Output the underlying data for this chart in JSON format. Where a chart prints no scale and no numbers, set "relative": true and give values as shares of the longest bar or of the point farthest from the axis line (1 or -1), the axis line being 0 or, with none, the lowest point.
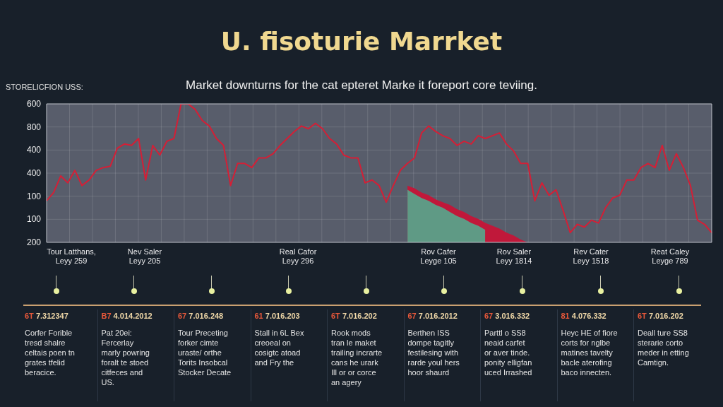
{
  "chart_data": {
    "type": "line",
    "title": "U. fisoturie Marrket",
    "subtitle": "Market downturns for the cat epteret Marke it foreport core teviing.",
    "ylabel": "STORELICFION USS:",
    "relative": true,
    "categories": [
      null,
      null,
      null,
      null,
      null,
      null,
      null,
      null,
      null,
      null,
      null,
      null,
      null,
      null,
      null,
      null,
      null,
      null,
      null,
      null,
      null,
      null,
      null,
      null,
      null,
      null,
      null,
      null,
      null,
      null,
      null,
      null,
      null,
      null,
      null,
      null,
      null,
      null,
      null,
      null,
      null,
      null,
      null,
      null,
      null,
      null,
      null,
      null,
      null,
      null,
      null,
      null,
      null,
      null,
      null,
      null,
      null,
      null,
      null,
      null,
      null,
      null,
      null,
      null,
      null,
      null,
      null,
      null,
      null,
      null,
      null,
      null,
      null,
      null,
      null,
      null,
      null,
      null,
      null,
      null,
      null,
      null,
      null,
      null,
      null,
      null,
      null,
      null,
      null,
      null,
      null,
      null,
      null,
      null,
      null
    ],
    "grid": true,
    "marker": "none",
    "series": [
      {
        "type": "area",
        "color": "#c0183a",
        "values": [
          null,
          null,
          null,
          null,
          null,
          null,
          null,
          null,
          null,
          null,
          null,
          null,
          null,
          null,
          null,
          null,
          null,
          null,
          null,
          null,
          null,
          null,
          null,
          null,
          null,
          null,
          null,
          null,
          null,
          null,
          null,
          null,
          null,
          null,
          null,
          null,
          null,
          null,
          null,
          null,
          null,
          null,
          null,
          null,
          null,
          null,
          null,
          null,
          null,
          null,
          null,
          0.41,
          0.39,
          0.36,
          0.34,
          0.31,
          0.29,
          0.27,
          0.24,
          0.22,
          0.19,
          0.17,
          0.14,
          0.12,
          0.1,
          0.07,
          0.05,
          0.02,
          0,
          null,
          null,
          null,
          null,
          null,
          null,
          null,
          null,
          null,
          null,
          null,
          null,
          null,
          null,
          null,
          null,
          null,
          null,
          null,
          null,
          null,
          null,
          null,
          null,
          null,
          null
        ]
      },
      {
        "type": "area",
        "color": "#5f9a85",
        "values": [
          null,
          null,
          null,
          null,
          null,
          null,
          null,
          null,
          null,
          null,
          null,
          null,
          null,
          null,
          null,
          null,
          null,
          null,
          null,
          null,
          null,
          null,
          null,
          null,
          null,
          null,
          null,
          null,
          null,
          null,
          null,
          null,
          null,
          null,
          null,
          null,
          null,
          null,
          null,
          null,
          null,
          null,
          null,
          null,
          null,
          null,
          null,
          null,
          null,
          null,
          null,
          0.38,
          0.35,
          0.32,
          0.3,
          0.27,
          0.25,
          0.22,
          0.19,
          0.17,
          0.14,
          0.12,
          0.09,
          null,
          null,
          null,
          null,
          null,
          null,
          null,
          null,
          null,
          null,
          null,
          null,
          null,
          null,
          null,
          null,
          null,
          null,
          null,
          null,
          null,
          null,
          null,
          null,
          null,
          null,
          null,
          null,
          null,
          null,
          null,
          null
        ]
      },
      {
        "color": "#d41f36",
        "values": [
          0.3,
          0.36,
          0.48,
          0.43,
          0.52,
          0.41,
          0.45,
          0.52,
          0.54,
          0.55,
          0.68,
          0.71,
          0.7,
          0.75,
          0.45,
          0.7,
          0.63,
          0.73,
          0.75,
          1,
          1,
          0.96,
          0.88,
          0.84,
          0.75,
          0.7,
          0.41,
          0.57,
          0.57,
          0.54,
          0.61,
          0.61,
          0.64,
          0.7,
          0.75,
          0.8,
          0.84,
          0.82,
          0.86,
          0.82,
          0.75,
          0.71,
          0.63,
          0.61,
          0.61,
          0.43,
          0.45,
          0.41,
          0.29,
          0.41,
          0.52,
          0.57,
          0.61,
          0.79,
          0.84,
          0.8,
          0.77,
          0.75,
          0.7,
          0.73,
          0.71,
          0.77,
          0.75,
          0.77,
          0.79,
          0.71,
          0.66,
          0.57,
          0.57,
          0.3,
          0.43,
          0.34,
          0.38,
          0.23,
          0.07,
          0.13,
          0.11,
          0.16,
          0.14,
          0.25,
          0.32,
          0.34,
          0.45,
          0.45,
          0.54,
          0.57,
          0.54,
          0.7,
          0.52,
          0.64,
          0.54,
          0.41,
          0.16,
          0.13,
          0.07
        ]
      }
    ],
    "annotations": [
      "600",
      "800",
      "400",
      "400",
      "100",
      "100",
      "200",
      "Tour Latthans,\nLeyy 259",
      "Nev Saler\nLeyy 205",
      "Real Cafor\nLeyy 296",
      "Rov Cafer\nLeyge 105",
      "Rov Saler\nLeyy 1814",
      "Rev Cater\nLeyy 1518",
      "Reat Caley\nLeyge 789",
      "6T 7.312347\nCorfer Forible\ntresd shalre\nceltais poen tn\ngrates tfelid\nberacice.",
      "B7 4.014.2012\nPat 20ei:\nFercerlay\nmarly powring\nforalt te stoed\ncitfeces and\nUS.",
      "67 7.016.248\nTour Preceting\nforker cimte\nuraste/ orthe\nTorits Insobcal\nStocker Decate",
      "61 7.016.203\nStall in 6L Bex\ncreoeal on\ncosigtc atoad\nand Fry the",
      "6T 7.016.202\nRook mods\ntran le maket\ntrailing incrarte\ncans he urark\nIll or or corce\nan agery",
      "67 7.016.2012\nBerthen ISS\ndompe tagitly\nfestilesing with\nrarde youl hers\nhoor shaurd",
      "67 3.016.332\nParttl o SS8\nneaid carfet\nor aver tinde.\nponity elligfan\nuced Irrashed",
      "81 4.076.332\nHeyc HE of fiore\ncorts for nglbe\nmatines tavelty\nbacle aterofing\nbaco innecten.",
      "6T 7.016.202\nDeall ture SS8\nsterarie corto\nmeder in etting\nCamtign."
    ]
  }
}
